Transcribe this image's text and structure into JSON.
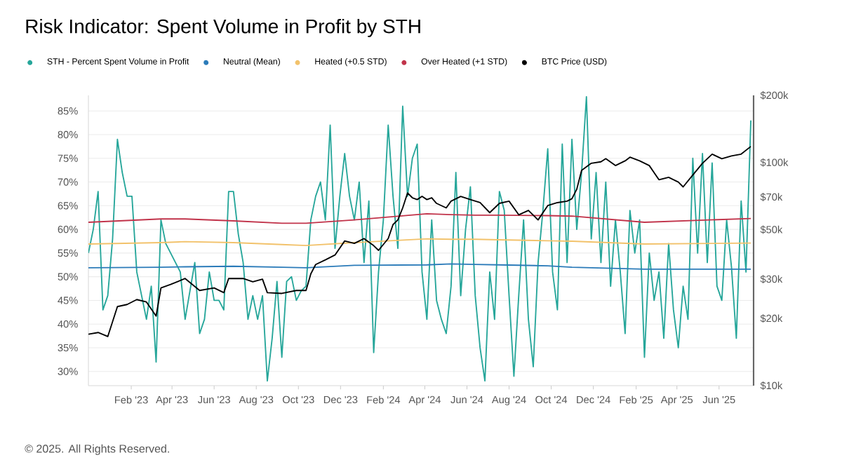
{
  "chart_data": {
    "type": "line",
    "title": "Risk Indicator: Spent Volume in Profit by STH",
    "annotations": [
      "© 2025. All Rights Reserved."
    ],
    "x": [
      "2022-12-01",
      "2022-12-08",
      "2022-12-15",
      "2022-12-22",
      "2022-12-29",
      "2023-01-05",
      "2023-01-12",
      "2023-01-19",
      "2023-01-26",
      "2023-02-02",
      "2023-02-09",
      "2023-02-16",
      "2023-02-23",
      "2023-03-02",
      "2023-03-09",
      "2023-03-16",
      "2023-03-23",
      "2023-03-30",
      "2023-04-06",
      "2023-04-13",
      "2023-04-20",
      "2023-04-27",
      "2023-05-04",
      "2023-05-11",
      "2023-05-18",
      "2023-05-25",
      "2023-06-01",
      "2023-06-08",
      "2023-06-15",
      "2023-06-22",
      "2023-06-29",
      "2023-07-06",
      "2023-07-13",
      "2023-07-20",
      "2023-07-27",
      "2023-08-03",
      "2023-08-10",
      "2023-08-17",
      "2023-08-24",
      "2023-08-31",
      "2023-09-07",
      "2023-09-14",
      "2023-09-21",
      "2023-09-28",
      "2023-10-05",
      "2023-10-12",
      "2023-10-19",
      "2023-10-26",
      "2023-11-02",
      "2023-11-09",
      "2023-11-16",
      "2023-11-23",
      "2023-11-30",
      "2023-12-07",
      "2023-12-14",
      "2023-12-21",
      "2023-12-28",
      "2024-01-04",
      "2024-01-11",
      "2024-01-18",
      "2024-01-25",
      "2024-02-01",
      "2024-02-08",
      "2024-02-15",
      "2024-02-22",
      "2024-02-29",
      "2024-03-07",
      "2024-03-14",
      "2024-03-21",
      "2024-03-28",
      "2024-04-04",
      "2024-04-11",
      "2024-04-18",
      "2024-04-25",
      "2024-05-02",
      "2024-05-09",
      "2024-05-16",
      "2024-05-23",
      "2024-05-30",
      "2024-06-06",
      "2024-06-13",
      "2024-06-20",
      "2024-06-27",
      "2024-07-04",
      "2024-07-11",
      "2024-07-18",
      "2024-07-25",
      "2024-08-01",
      "2024-08-08",
      "2024-08-15",
      "2024-08-22",
      "2024-08-29",
      "2024-09-05",
      "2024-09-12",
      "2024-09-19",
      "2024-09-26",
      "2024-10-03",
      "2024-10-10",
      "2024-10-17",
      "2024-10-24",
      "2024-10-31",
      "2024-11-07",
      "2024-11-14",
      "2024-11-21",
      "2024-11-28",
      "2024-12-05",
      "2024-12-12",
      "2024-12-19",
      "2024-12-26",
      "2025-01-02",
      "2025-01-09",
      "2025-01-16",
      "2025-01-23",
      "2025-01-30",
      "2025-02-06",
      "2025-02-13",
      "2025-02-20",
      "2025-02-27",
      "2025-03-06",
      "2025-03-13",
      "2025-03-20",
      "2025-03-27",
      "2025-04-03",
      "2025-04-10",
      "2025-04-17",
      "2025-04-24",
      "2025-05-01",
      "2025-05-08",
      "2025-05-15",
      "2025-05-22",
      "2025-05-29",
      "2025-06-05",
      "2025-06-12",
      "2025-06-19",
      "2025-06-26",
      "2025-07-03",
      "2025-07-10",
      "2025-07-17"
    ],
    "series": [
      {
        "name": "STH - Percent Spent Volume in Profit",
        "color": "#26a69a",
        "values": [
          55,
          60,
          68,
          43,
          46,
          58,
          79,
          72,
          67,
          67,
          51,
          46,
          41,
          48,
          32,
          62,
          57,
          55,
          53,
          51,
          41,
          47,
          53,
          38,
          41,
          51,
          45,
          45,
          43,
          68,
          68,
          59,
          53,
          41,
          46,
          41,
          46,
          28,
          37,
          49,
          33,
          49,
          50,
          45,
          47,
          48,
          62,
          67,
          70,
          62,
          82,
          56,
          67,
          76,
          67,
          62,
          70,
          53,
          66,
          34,
          51,
          62,
          82,
          67,
          56,
          86,
          67,
          75,
          78,
          51,
          41,
          62,
          45,
          41,
          38,
          48,
          72,
          46,
          60,
          69,
          46,
          35,
          28,
          51,
          41,
          68,
          64,
          46,
          29,
          46,
          62,
          41,
          31,
          53,
          64,
          77,
          51,
          43,
          78,
          53,
          79,
          60,
          72,
          88,
          58,
          72,
          53,
          70,
          48,
          62,
          51,
          38,
          64,
          55,
          62,
          33,
          55,
          45,
          51,
          37,
          57,
          43,
          35,
          48,
          41,
          75,
          55,
          76,
          53,
          74,
          48,
          45,
          62,
          52,
          37,
          66,
          51,
          83
        ]
      },
      {
        "name": "Neutral (Mean)",
        "color": "#2b7bb9",
        "x": [
          "2022-12-01",
          "2023-03-16",
          "2023-04-20",
          "2023-06-29",
          "2023-09-07",
          "2023-10-12",
          "2023-12-21",
          "2024-04-04",
          "2024-05-09",
          "2024-06-13",
          "2024-07-18",
          "2024-09-26",
          "2024-10-31",
          "2025-02-13",
          "2025-07-17"
        ],
        "values": [
          51.9,
          52.0,
          52.1,
          52.2,
          52.0,
          51.9,
          52.4,
          52.5,
          52.7,
          52.6,
          52.5,
          52.3,
          52.0,
          51.6,
          51.6
        ]
      },
      {
        "name": "Heated (+0.5 STD)",
        "color": "#f2c26b",
        "x": [
          "2022-12-01",
          "2023-03-16",
          "2023-04-20",
          "2023-06-29",
          "2023-09-07",
          "2023-10-12",
          "2023-12-21",
          "2024-04-04",
          "2024-05-09",
          "2024-06-13",
          "2024-07-18",
          "2024-09-26",
          "2024-10-31",
          "2025-02-13",
          "2025-07-17"
        ],
        "values": [
          56.9,
          57.2,
          57.4,
          57.2,
          56.8,
          56.6,
          57.2,
          58.0,
          57.9,
          57.9,
          57.8,
          57.6,
          57.5,
          56.9,
          57.1
        ]
      },
      {
        "name": "Over Heated (+1 STD)",
        "color": "#c1334a",
        "x": [
          "2022-12-01",
          "2023-03-16",
          "2023-04-20",
          "2023-06-29",
          "2023-09-07",
          "2023-10-12",
          "2023-12-21",
          "2024-04-04",
          "2024-05-09",
          "2024-06-13",
          "2024-07-18",
          "2024-09-26",
          "2024-10-31",
          "2025-02-13",
          "2025-07-17"
        ],
        "values": [
          61.5,
          62.2,
          62.2,
          61.8,
          61.3,
          61.3,
          62.0,
          63.3,
          63.1,
          63.0,
          63.0,
          62.9,
          62.8,
          61.5,
          62.3
        ]
      },
      {
        "name": "BTC Price (USD)",
        "color": "#000000",
        "axis": "y2",
        "x": [
          "2022-12-01",
          "2022-12-15",
          "2022-12-29",
          "2023-01-12",
          "2023-01-26",
          "2023-02-09",
          "2023-02-23",
          "2023-03-09",
          "2023-03-16",
          "2023-03-30",
          "2023-04-20",
          "2023-05-11",
          "2023-06-01",
          "2023-06-15",
          "2023-06-22",
          "2023-07-13",
          "2023-07-27",
          "2023-08-10",
          "2023-08-17",
          "2023-09-07",
          "2023-09-28",
          "2023-10-12",
          "2023-10-19",
          "2023-10-26",
          "2023-11-09",
          "2023-11-23",
          "2023-12-07",
          "2023-12-21",
          "2024-01-04",
          "2024-01-18",
          "2024-01-25",
          "2024-02-08",
          "2024-02-15",
          "2024-02-22",
          "2024-02-29",
          "2024-03-07",
          "2024-03-14",
          "2024-03-21",
          "2024-03-28",
          "2024-04-04",
          "2024-04-11",
          "2024-04-18",
          "2024-05-02",
          "2024-05-09",
          "2024-05-23",
          "2024-06-06",
          "2024-06-20",
          "2024-07-04",
          "2024-07-18",
          "2024-08-01",
          "2024-08-15",
          "2024-08-29",
          "2024-09-12",
          "2024-09-26",
          "2024-10-10",
          "2024-10-24",
          "2024-10-31",
          "2024-11-07",
          "2024-11-14",
          "2024-11-28",
          "2024-12-12",
          "2024-12-19",
          "2025-01-02",
          "2025-01-16",
          "2025-01-23",
          "2025-02-06",
          "2025-02-20",
          "2025-02-27",
          "2025-03-06",
          "2025-03-20",
          "2025-04-03",
          "2025-04-10",
          "2025-04-24",
          "2025-05-08",
          "2025-05-22",
          "2025-06-05",
          "2025-06-19",
          "2025-07-03",
          "2025-07-17"
        ],
        "values": [
          17000,
          17300,
          16600,
          22600,
          23100,
          24300,
          23700,
          20500,
          27400,
          28400,
          30200,
          26700,
          27400,
          26100,
          30200,
          30200,
          29200,
          30000,
          26100,
          25900,
          26700,
          26700,
          31700,
          34900,
          36600,
          38500,
          44500,
          43400,
          45600,
          42400,
          40400,
          45600,
          52700,
          55300,
          62600,
          73000,
          69500,
          68200,
          70500,
          68200,
          69500,
          65600,
          62600,
          67100,
          70500,
          68200,
          66100,
          59600,
          65600,
          67100,
          58300,
          61000,
          55300,
          64100,
          66100,
          67100,
          68800,
          75900,
          92200,
          99200,
          100700,
          104000,
          96900,
          101700,
          105600,
          101700,
          96900,
          90000,
          83700,
          85800,
          81700,
          77800,
          87900,
          99200,
          109000,
          104000,
          107000,
          109000,
          118000
        ]
      }
    ],
    "xlim": [
      "2022-12-01",
      "2025-07-21"
    ],
    "xticks": [
      {
        "value": "2023-02-01",
        "label": "Feb '23"
      },
      {
        "value": "2023-04-01",
        "label": "Apr '23"
      },
      {
        "value": "2023-06-01",
        "label": "Jun '23"
      },
      {
        "value": "2023-08-01",
        "label": "Aug '23"
      },
      {
        "value": "2023-10-01",
        "label": "Oct '23"
      },
      {
        "value": "2023-12-01",
        "label": "Dec '23"
      },
      {
        "value": "2024-02-01",
        "label": "Feb '24"
      },
      {
        "value": "2024-04-01",
        "label": "Apr '24"
      },
      {
        "value": "2024-06-01",
        "label": "Jun '24"
      },
      {
        "value": "2024-08-01",
        "label": "Aug '24"
      },
      {
        "value": "2024-10-01",
        "label": "Oct '24"
      },
      {
        "value": "2024-12-01",
        "label": "Dec '24"
      },
      {
        "value": "2025-02-01",
        "label": "Feb '25"
      },
      {
        "value": "2025-04-01",
        "label": "Apr '25"
      },
      {
        "value": "2025-06-01",
        "label": "Jun '25"
      }
    ],
    "ylim": [
      27,
      88.3
    ],
    "yticks": [
      {
        "value": 30,
        "label": "30%"
      },
      {
        "value": 35,
        "label": "35%"
      },
      {
        "value": 40,
        "label": "40%"
      },
      {
        "value": 45,
        "label": "45%"
      },
      {
        "value": 50,
        "label": "50%"
      },
      {
        "value": 55,
        "label": "55%"
      },
      {
        "value": 60,
        "label": "60%"
      },
      {
        "value": 65,
        "label": "65%"
      },
      {
        "value": 70,
        "label": "70%"
      },
      {
        "value": 75,
        "label": "75%"
      },
      {
        "value": 80,
        "label": "80%"
      },
      {
        "value": 85,
        "label": "85%"
      }
    ],
    "y2lim": [
      10000,
      200000
    ],
    "y2ticks": [
      {
        "value": 10000,
        "label": "$10k"
      },
      {
        "value": 20000,
        "label": "$20k"
      },
      {
        "value": 30000,
        "label": "$30k"
      },
      {
        "value": 50000,
        "label": "$50k"
      },
      {
        "value": 70000,
        "label": "$70k"
      },
      {
        "value": 100000,
        "label": "$100k"
      },
      {
        "value": 200000,
        "label": "$200k"
      }
    ],
    "log": "y2",
    "grid": "y",
    "legend": "top left"
  }
}
